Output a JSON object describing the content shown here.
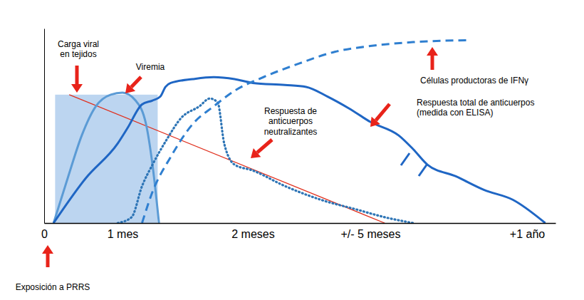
{
  "chart_data": {
    "type": "line",
    "xlim": [
      0,
      13
    ],
    "xticks": [
      0,
      {
        "value": 1,
        "label": "1 mes"
      },
      {
        "value": 2,
        "label": "2 meses"
      },
      {
        "value": 5,
        "label": "+/- 5 meses"
      },
      {
        "value": 12,
        "label": "+1 año"
      }
    ],
    "ylim": [
      0,
      100
    ],
    "tick_labels": "x",
    "grid": false,
    "regions": [
      {
        "x": [
          0.14,
          1.27
        ],
        "y": 66,
        "color": "#bcd5f0"
      }
    ],
    "series": [
      {
        "name": "Carga viral\nen tejidos",
        "color": "#e0301e",
        "line_style": "solid",
        "x": [
          0.32,
          5.64
        ],
        "values": [
          66,
          0
        ]
      },
      {
        "name": "Viremia",
        "color": "#5b9bd5",
        "line_style": "solid",
        "x": [
          0.12,
          0.3,
          0.48,
          0.66,
          0.85,
          1.0,
          1.1,
          1.18,
          1.23,
          1.28
        ],
        "values": [
          0,
          23,
          45,
          60,
          66,
          67,
          63,
          51,
          30,
          0
        ]
      },
      {
        "name": "Respuesta total de anticuerpos\n(medida con ELISA)",
        "color": "#1f66c4",
        "line_style": "solid",
        "x": [
          0.12,
          0.53,
          0.94,
          1.04,
          1.15,
          1.23,
          1.29,
          1.33,
          1.37,
          1.54,
          1.7,
          1.86,
          2.0,
          2.82,
          3.36,
          3.91,
          4.45,
          5.0,
          6.27,
          6.91,
          7.55,
          8.82,
          10.09,
          11.36,
          12.64
        ],
        "values": [
          0,
          23,
          41,
          49,
          61,
          63,
          65,
          70,
          72,
          74,
          75,
          74,
          72,
          71,
          70,
          65,
          59,
          52,
          45,
          38,
          30,
          24,
          17,
          12,
          0
        ]
      },
      {
        "name": "Respuesta de\nanticuerpos\nneutralizantes",
        "color": "#2e75b6",
        "line_style": "dotted",
        "x": [
          0.94,
          1.07,
          1.15,
          1.23,
          1.34,
          1.45,
          1.59,
          1.67,
          1.73,
          1.78,
          1.86,
          2.0,
          2.82,
          3.73,
          4.64,
          5.64,
          6.91
        ],
        "values": [
          0,
          3,
          19,
          30,
          43,
          54,
          60,
          64,
          62,
          41,
          30,
          27,
          19,
          12,
          7,
          3,
          0
        ]
      },
      {
        "name": "Células productoras de IFNγ",
        "color": "#2f7fd0",
        "line_style": "dashed",
        "x": [
          1.15,
          1.23,
          1.37,
          1.54,
          1.7,
          1.86,
          2.27,
          3.18,
          4.09,
          5.0,
          6.91,
          9.3
        ],
        "values": [
          0,
          16,
          34,
          51,
          60,
          68,
          75,
          82,
          88,
          91,
          93,
          94
        ]
      }
    ],
    "annotations": [
      {
        "text": "Exposición a PRRS"
      }
    ]
  }
}
